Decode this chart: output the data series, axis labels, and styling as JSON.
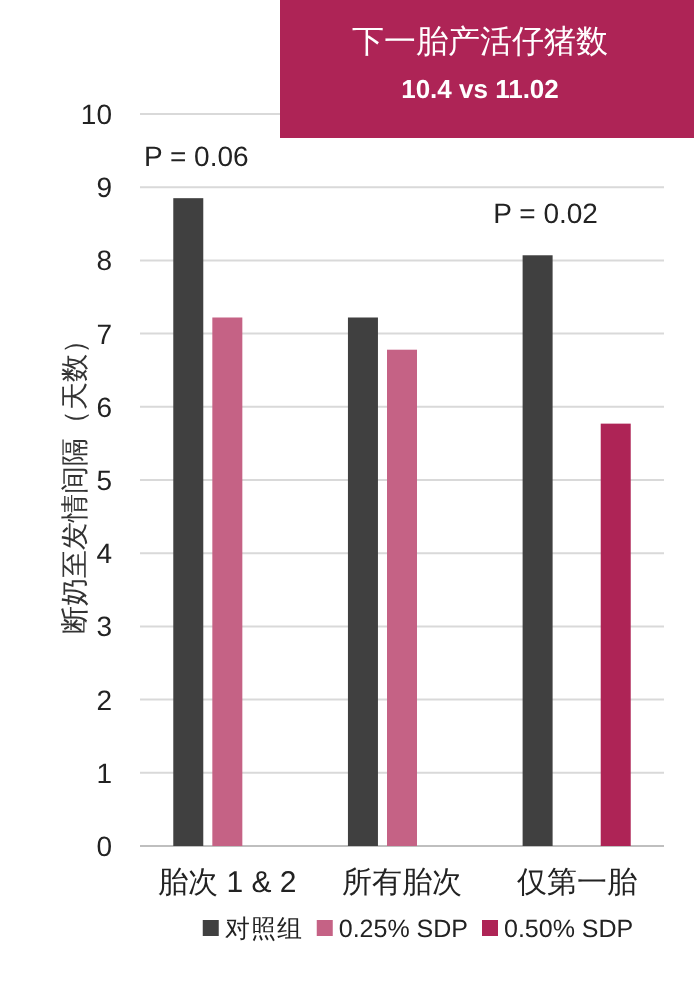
{
  "chart_data": {
    "type": "bar",
    "title": "下一胎产活仔猪数",
    "subtitle": "10.4 vs 11.02",
    "ylabel": "断奶至发情间隔（天数）",
    "categories": [
      "胎次 1 & 2",
      "所有胎次",
      "仅第一胎"
    ],
    "series": [
      {
        "name": "对照组",
        "color": "#404040",
        "values": [
          8.85,
          7.22,
          8.07
        ]
      },
      {
        "name": "0.25% SDP",
        "color": "#c56285",
        "values": [
          7.22,
          6.78,
          null
        ]
      },
      {
        "name": "0.50% SDP",
        "color": "#ae2456",
        "values": [
          null,
          null,
          5.77
        ]
      }
    ],
    "ylim": [
      0,
      10
    ],
    "yticks": [
      0,
      1,
      2,
      3,
      4,
      5,
      6,
      7,
      8,
      9,
      10
    ],
    "grid": "y",
    "legend": "bottom",
    "annotations": [
      "P = 0.06",
      "P = 0.02"
    ]
  }
}
